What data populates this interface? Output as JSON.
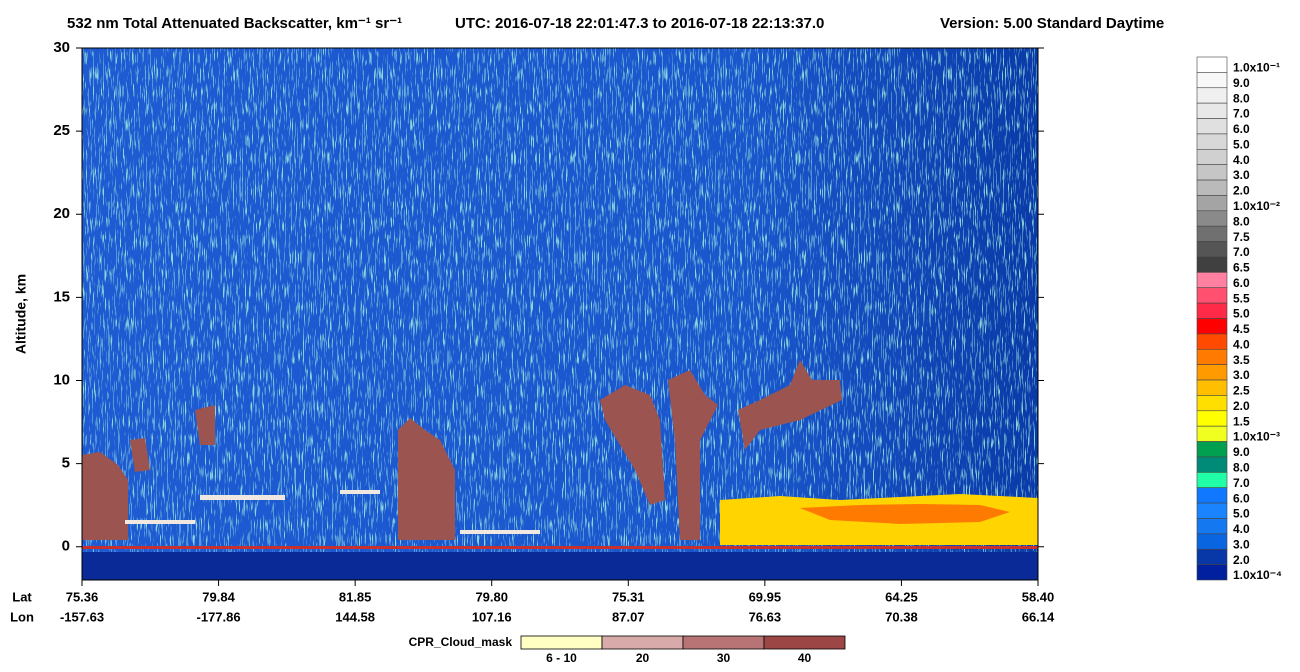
{
  "chart_data": {
    "type": "curtain",
    "title": "532 nm Total Attenuated Backscatter, km⁻¹ sr⁻¹",
    "utc": "UTC:  2016-07-18 22:01:47.3  to  2016-07-18 22:13:37.0",
    "version": "Version: 5.00  Standard  Daytime",
    "ylabel": "Altitude, km",
    "ylim": [
      -2,
      30
    ],
    "yticks": [
      0,
      5,
      10,
      15,
      20,
      25,
      30
    ],
    "x_rows": [
      {
        "name": "Lat",
        "labels": [
          "75.36",
          "79.84",
          "81.85",
          "79.80",
          "75.31",
          "69.95",
          "64.25",
          "58.40"
        ]
      },
      {
        "name": "Lon",
        "labels": [
          "-157.63",
          "-177.86",
          "144.58",
          "107.16",
          "87.07",
          "76.63",
          "70.38",
          "66.14"
        ]
      }
    ],
    "colorbar": {
      "labels": [
        "1.0x10⁻¹",
        "9.0",
        "8.0",
        "7.0",
        "6.0",
        "5.0",
        "4.0",
        "3.0",
        "2.0",
        "1.0x10⁻²",
        "8.0",
        "7.5",
        "7.0",
        "6.5",
        "6.0",
        "5.5",
        "5.0",
        "4.5",
        "4.0",
        "3.5",
        "3.0",
        "2.5",
        "2.0",
        "1.5",
        "1.0x10⁻³",
        "9.0",
        "8.0",
        "7.0",
        "6.0",
        "5.0",
        "4.0",
        "3.0",
        "2.0",
        "1.0x10⁻⁴"
      ],
      "colors": [
        "#ffffff",
        "#f8f8f8",
        "#f0f0f0",
        "#e8e8e8",
        "#e0e0e0",
        "#d8d8d8",
        "#d0d0d0",
        "#c6c6c6",
        "#bababa",
        "#a4a4a4",
        "#8a8a8a",
        "#707070",
        "#555555",
        "#404040",
        "#ff80a0",
        "#ff5070",
        "#ff2a48",
        "#ff0000",
        "#ff4a00",
        "#ff7a00",
        "#ff9a00",
        "#ffbe00",
        "#ffdf00",
        "#ffff00",
        "#f0ff20",
        "#00a050",
        "#008a78",
        "#20ffa8",
        "#1078ff",
        "#1a84ff",
        "#1478f0",
        "#0a66e0",
        "#0838a8",
        "#0020a0"
      ]
    },
    "cpr_legend": {
      "title": "CPR_Cloud_mask",
      "labels": [
        "6 - 10",
        "20",
        "30",
        "40"
      ],
      "colors": [
        "#ffffc4",
        "#d8aaaa",
        "#b87474",
        "#9c4646"
      ]
    }
  }
}
